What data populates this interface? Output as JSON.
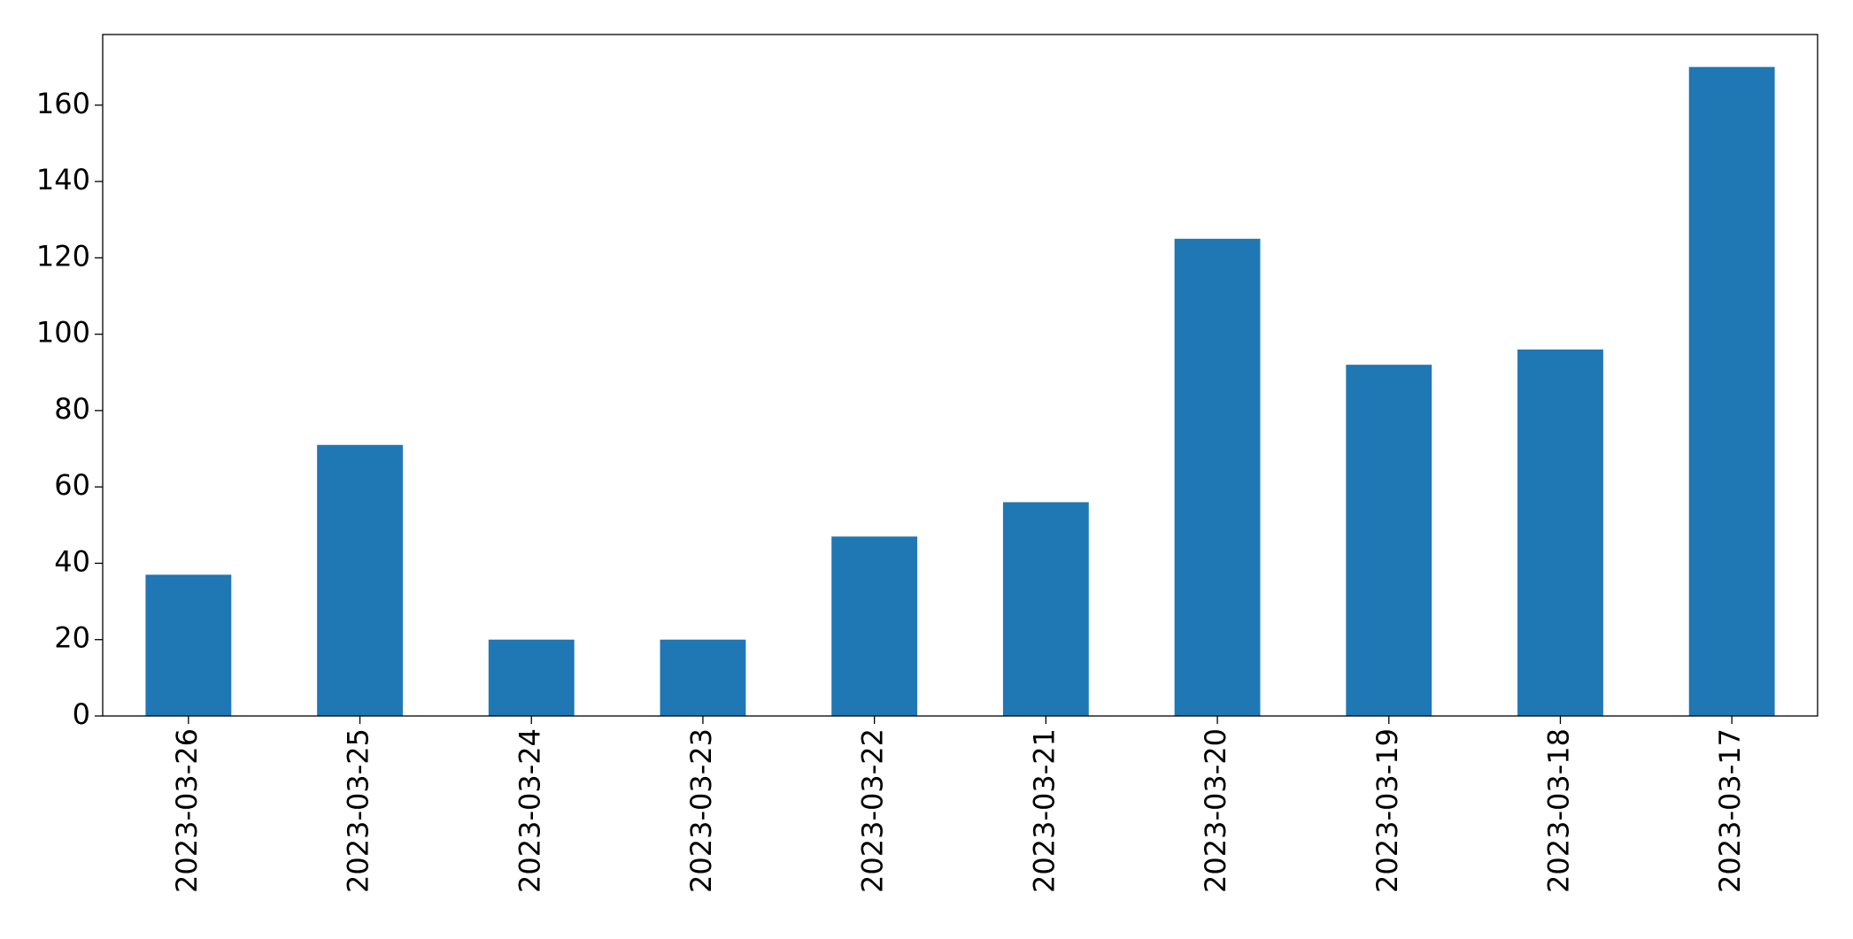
{
  "chart_data": {
    "type": "bar",
    "categories": [
      "2023-03-26",
      "2023-03-25",
      "2023-03-24",
      "2023-03-23",
      "2023-03-22",
      "2023-03-21",
      "2023-03-20",
      "2023-03-19",
      "2023-03-18",
      "2023-03-17"
    ],
    "values": [
      37,
      71,
      20,
      20,
      47,
      56,
      125,
      92,
      96,
      170
    ],
    "color": "#1f77b4",
    "ylim": [
      0,
      178.5
    ],
    "yticks": [
      0,
      20,
      40,
      60,
      80,
      100,
      120,
      140,
      160
    ],
    "grid": false
  }
}
